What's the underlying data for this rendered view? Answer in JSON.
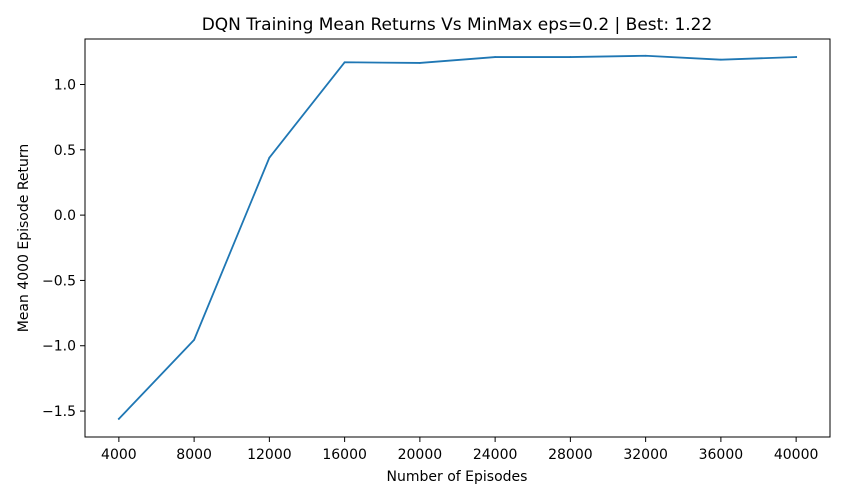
{
  "chart_data": {
    "type": "line",
    "title": "DQN Training Mean Returns Vs MinMax eps=0.2 | Best:  1.22",
    "xlabel": "Number of Episodes",
    "ylabel": "Mean 4000 Episode Return",
    "x": [
      4000,
      8000,
      12000,
      16000,
      20000,
      24000,
      28000,
      32000,
      36000,
      40000
    ],
    "series": [
      {
        "values": [
          -1.56,
          -0.955,
          0.44,
          1.17,
          1.165,
          1.21,
          1.21,
          1.22,
          1.19,
          1.21
        ],
        "color": "#1f77b4"
      }
    ],
    "xticks": [
      4000,
      8000,
      12000,
      16000,
      20000,
      24000,
      28000,
      32000,
      36000,
      40000
    ],
    "xtick_labels": [
      "4000",
      "8000",
      "12000",
      "16000",
      "20000",
      "24000",
      "28000",
      "32000",
      "36000",
      "40000"
    ],
    "yticks": [
      -1.5,
      -1.0,
      -0.5,
      0.0,
      0.5,
      1.0
    ],
    "ytick_labels": [
      "−1.5",
      "−1.0",
      "−0.5",
      "0.0",
      "0.5",
      "1.0"
    ],
    "xlim": [
      2200,
      41800
    ],
    "ylim": [
      -1.6986,
      1.3482
    ],
    "grid": false,
    "legend": "none"
  }
}
